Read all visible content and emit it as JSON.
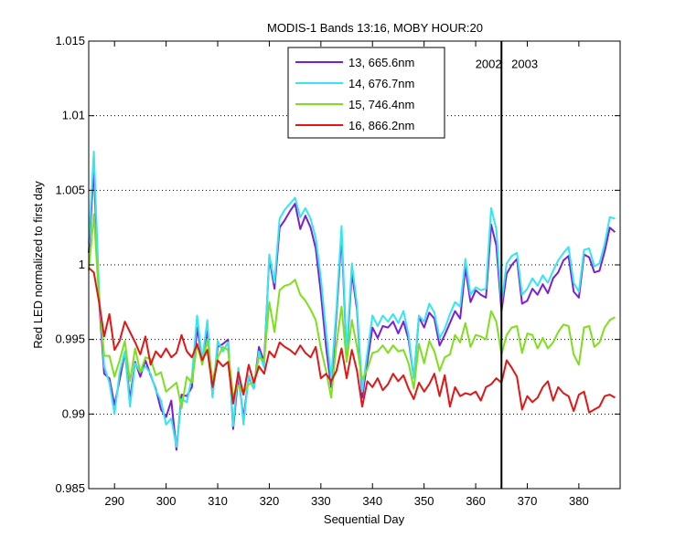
{
  "chart_data": {
    "type": "line",
    "title": "MODIS-1 Bands 13:16, MOBY HOUR:20",
    "xlabel": "Sequential Day",
    "ylabel": "Red LED normalized to first day",
    "xlim": [
      285,
      388
    ],
    "ylim": [
      0.985,
      1.015
    ],
    "xticks": [
      290,
      300,
      310,
      320,
      330,
      340,
      350,
      360,
      370,
      380
    ],
    "yticks": [
      0.985,
      0.99,
      0.995,
      1,
      1.005,
      1.01,
      1.015
    ],
    "ytick_labels": [
      "0.985",
      "0.99",
      "0.995",
      "1",
      "1.005",
      "1.01",
      "1.015"
    ],
    "grid": "y-dotted",
    "legend_position": "top-center",
    "annotations": [
      {
        "type": "vline",
        "x": 365
      },
      {
        "type": "text",
        "text": "2002",
        "x": 362.5,
        "y": 1.0132
      },
      {
        "type": "text",
        "text": "2003",
        "x": 369.5,
        "y": 1.0132
      }
    ],
    "x": [
      285,
      286,
      287,
      288,
      289,
      290,
      291,
      292,
      293,
      294,
      295,
      296,
      297,
      298,
      299,
      300,
      301,
      302,
      303,
      304,
      305,
      306,
      307,
      308,
      309,
      310,
      311,
      312,
      313,
      314,
      315,
      316,
      317,
      318,
      319,
      320,
      321,
      322,
      323,
      324,
      325,
      326,
      327,
      328,
      329,
      330,
      331,
      332,
      333,
      334,
      335,
      336,
      337,
      338,
      339,
      340,
      341,
      342,
      343,
      344,
      345,
      346,
      347,
      348,
      349,
      350,
      351,
      352,
      353,
      354,
      355,
      356,
      357,
      358,
      359,
      360,
      361,
      362,
      363,
      364,
      365,
      366,
      367,
      368,
      369,
      370,
      371,
      372,
      373,
      374,
      375,
      376,
      377,
      378,
      379,
      380,
      381,
      382,
      383,
      384,
      385,
      386,
      387
    ],
    "series": [
      {
        "name": "13, 665.6nm",
        "color": "#7b1fd6",
        "values": [
          1.0008,
          1.0065,
          0.9976,
          0.9927,
          0.9924,
          0.9906,
          0.9923,
          0.9941,
          0.991,
          0.9935,
          0.9925,
          0.9936,
          0.9926,
          0.9917,
          0.9903,
          0.9898,
          0.9909,
          0.9876,
          0.9913,
          0.9912,
          0.9918,
          0.9958,
          0.9937,
          0.9956,
          0.9912,
          0.9945,
          0.9947,
          0.995,
          0.989,
          0.9926,
          0.9897,
          0.9925,
          0.9917,
          0.9945,
          0.9935,
          1.0005,
          0.9984,
          1.0025,
          1.003,
          1.0036,
          1.0041,
          1.0024,
          1.0033,
          1.0025,
          1.0011,
          0.9981,
          0.9945,
          0.9918,
          0.9966,
          1.002,
          0.9939,
          0.9995,
          0.997,
          0.9911,
          0.9935,
          0.9958,
          0.9951,
          0.9959,
          0.9958,
          0.9962,
          0.9954,
          0.9962,
          0.995,
          0.9924,
          0.9965,
          0.9958,
          0.9968,
          0.9964,
          0.9946,
          0.9953,
          0.9961,
          0.9969,
          0.9964,
          0.9998,
          0.9975,
          0.9983,
          0.998,
          0.9978,
          1.0027,
          1.0013,
          0.9969,
          0.9994,
          1.0,
          1.0004,
          0.9974,
          0.9976,
          0.9984,
          0.998,
          0.9987,
          0.9981,
          0.9991,
          0.9995,
          1.0003,
          1.0006,
          0.9982,
          0.9978,
          1.0007,
          1.0005,
          0.9995,
          0.9996,
          1.0009,
          1.0025,
          1.0022
        ]
      },
      {
        "name": "14, 676.7nm",
        "color": "#33e6f0",
        "values": [
          1.0014,
          1.0076,
          0.9982,
          0.9932,
          0.9921,
          0.99,
          0.9928,
          0.9942,
          0.9905,
          0.9934,
          0.9928,
          0.9932,
          0.9927,
          0.9916,
          0.9909,
          0.9893,
          0.9897,
          0.9878,
          0.991,
          0.9908,
          0.9925,
          0.9966,
          0.9936,
          0.9963,
          0.9911,
          0.9949,
          0.9942,
          0.9948,
          0.9892,
          0.9931,
          0.9893,
          0.9926,
          0.9917,
          0.9942,
          0.9931,
          1.0007,
          0.9988,
          1.0031,
          1.0037,
          1.0041,
          1.0045,
          1.0032,
          1.0038,
          1.0031,
          1.0018,
          0.9991,
          0.9955,
          0.9924,
          0.997,
          1.0026,
          0.9941,
          1.0001,
          0.9973,
          0.9915,
          0.9941,
          0.9966,
          0.9959,
          0.9966,
          0.9962,
          0.9967,
          0.9961,
          0.9969,
          0.9953,
          0.9924,
          0.9966,
          0.9962,
          0.9974,
          0.9968,
          0.9951,
          0.9957,
          0.9967,
          0.9975,
          0.9972,
          1.0004,
          0.998,
          0.9985,
          0.9983,
          0.9984,
          1.0038,
          1.0024,
          0.9974,
          1.0001,
          1.0006,
          1.0008,
          0.998,
          0.9984,
          0.9991,
          0.9986,
          0.9993,
          0.9988,
          0.9996,
          1.0003,
          1.0008,
          1.0012,
          0.9988,
          0.9982,
          1.001,
          1.0011,
          0.9999,
          1.0001,
          1.0014,
          1.0032,
          1.0031
        ]
      },
      {
        "name": "15, 746.4nm",
        "color": "#7ee01c",
        "values": [
          0.9996,
          1.0034,
          0.9977,
          0.9939,
          0.9939,
          0.9925,
          0.9936,
          0.9949,
          0.9922,
          0.9944,
          0.9928,
          0.9938,
          0.9937,
          0.9926,
          0.9928,
          0.9915,
          0.9918,
          0.9921,
          0.9904,
          0.9925,
          0.9921,
          0.9947,
          0.9933,
          0.995,
          0.9922,
          0.9938,
          0.9945,
          0.9943,
          0.9912,
          0.9919,
          0.9914,
          0.992,
          0.9921,
          0.9938,
          0.9936,
          0.9975,
          0.9955,
          0.9983,
          0.9986,
          0.9987,
          0.999,
          0.998,
          0.9976,
          0.997,
          0.9963,
          0.9944,
          0.9929,
          0.9911,
          0.9947,
          0.9972,
          0.9935,
          0.9963,
          0.9945,
          0.9923,
          0.993,
          0.9941,
          0.9942,
          0.9946,
          0.9941,
          0.9946,
          0.9942,
          0.9943,
          0.9934,
          0.9917,
          0.9947,
          0.9934,
          0.9949,
          0.9942,
          0.9929,
          0.9938,
          0.994,
          0.9953,
          0.9948,
          0.9961,
          0.9945,
          0.9953,
          0.9952,
          0.995,
          0.9969,
          0.9962,
          0.994,
          0.9953,
          0.9958,
          0.9959,
          0.9941,
          0.9954,
          0.9953,
          0.9944,
          0.9951,
          0.9944,
          0.9948,
          0.9955,
          0.996,
          0.9959,
          0.994,
          0.9933,
          0.9958,
          0.9959,
          0.9945,
          0.9948,
          0.9958,
          0.9963,
          0.9965
        ]
      },
      {
        "name": "16, 866.2nm",
        "color": "#e31515",
        "values": [
          0.9998,
          0.9995,
          0.9975,
          0.9952,
          0.9967,
          0.9943,
          0.9949,
          0.9962,
          0.9955,
          0.9948,
          0.994,
          0.9952,
          0.9933,
          0.9942,
          0.9938,
          0.9944,
          0.9938,
          0.9941,
          0.9953,
          0.9942,
          0.9938,
          0.9947,
          0.9936,
          0.9943,
          0.9918,
          0.9936,
          0.9932,
          0.9935,
          0.9907,
          0.9928,
          0.9913,
          0.9933,
          0.9921,
          0.9932,
          0.9927,
          0.9942,
          0.9938,
          0.9948,
          0.9945,
          0.9943,
          0.994,
          0.9946,
          0.9941,
          0.9938,
          0.9945,
          0.9924,
          0.9927,
          0.9922,
          0.9929,
          0.9944,
          0.9924,
          0.9943,
          0.9929,
          0.9905,
          0.9922,
          0.9918,
          0.9924,
          0.9916,
          0.992,
          0.9927,
          0.9922,
          0.9926,
          0.9917,
          0.991,
          0.9921,
          0.9915,
          0.992,
          0.9927,
          0.9912,
          0.9926,
          0.9905,
          0.9918,
          0.9912,
          0.9914,
          0.9913,
          0.9915,
          0.9909,
          0.9918,
          0.992,
          0.9924,
          0.9921,
          0.9936,
          0.9931,
          0.9925,
          0.9903,
          0.9912,
          0.9908,
          0.9911,
          0.9918,
          0.9922,
          0.9909,
          0.9918,
          0.9914,
          0.9912,
          0.9902,
          0.9913,
          0.9915,
          0.9901,
          0.9903,
          0.9905,
          0.9912,
          0.9913,
          0.9911
        ]
      }
    ]
  }
}
